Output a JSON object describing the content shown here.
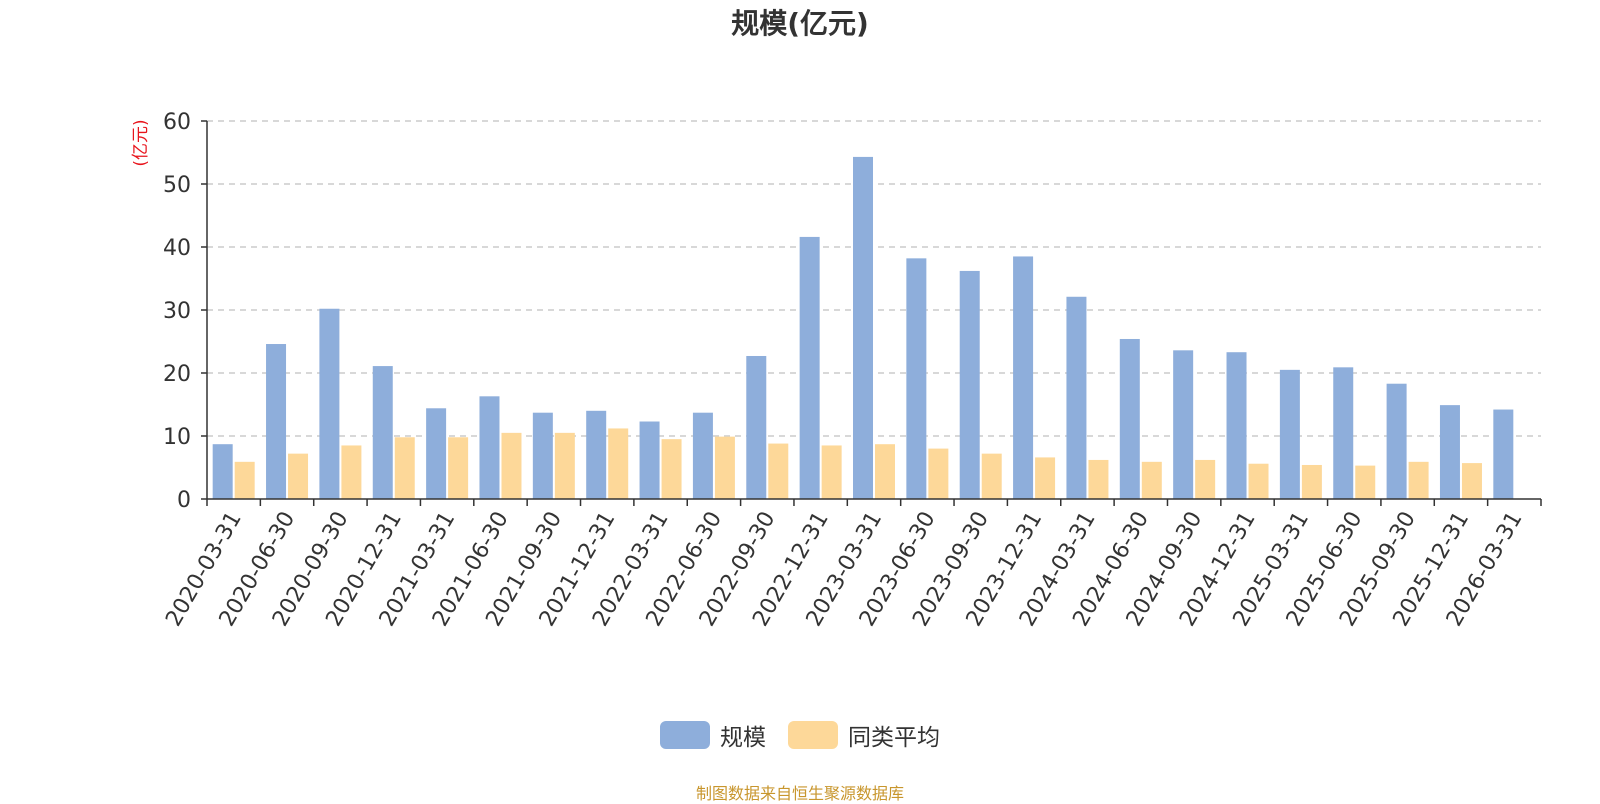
{
  "chart_data": {
    "type": "bar",
    "title": "规模(亿元)",
    "ylabel": "(亿元)",
    "xlabel": "",
    "ylim": [
      0,
      60
    ],
    "yticks": [
      0,
      10,
      20,
      30,
      40,
      50,
      60
    ],
    "grid": true,
    "legend_position": "bottom",
    "categories": [
      "2020-03-31",
      "2020-06-30",
      "2020-09-30",
      "2020-12-31",
      "2021-03-31",
      "2021-06-30",
      "2021-09-30",
      "2021-12-31",
      "2022-03-31",
      "2022-06-30",
      "2022-09-30",
      "2022-12-31",
      "2023-03-31",
      "2023-06-30",
      "2023-09-30",
      "2023-12-31",
      "2024-03-31",
      "2024-06-30",
      "2024-09-30",
      "2024-12-31",
      "2025-03-31",
      "2025-06-30",
      "2025-09-30",
      "2025-12-31",
      "2026-03-31"
    ],
    "series": [
      {
        "name": "规模",
        "color": "#8eaedb",
        "values": [
          8.7,
          24.6,
          30.2,
          21.1,
          14.4,
          16.3,
          13.7,
          14.0,
          12.3,
          13.7,
          22.7,
          41.6,
          54.3,
          38.2,
          36.2,
          38.5,
          32.1,
          25.4,
          23.6,
          23.3,
          20.5,
          20.9,
          18.3,
          14.9,
          14.2
        ]
      },
      {
        "name": "同类平均",
        "color": "#fdd899",
        "values": [
          5.9,
          7.2,
          8.5,
          9.8,
          9.8,
          10.5,
          10.5,
          11.2,
          9.5,
          9.9,
          8.8,
          8.5,
          8.7,
          8.0,
          7.2,
          6.6,
          6.2,
          5.9,
          6.2,
          5.6,
          5.4,
          5.3,
          5.9,
          5.7,
          null
        ]
      }
    ]
  },
  "source_note": "制图数据来自恒生聚源数据库"
}
